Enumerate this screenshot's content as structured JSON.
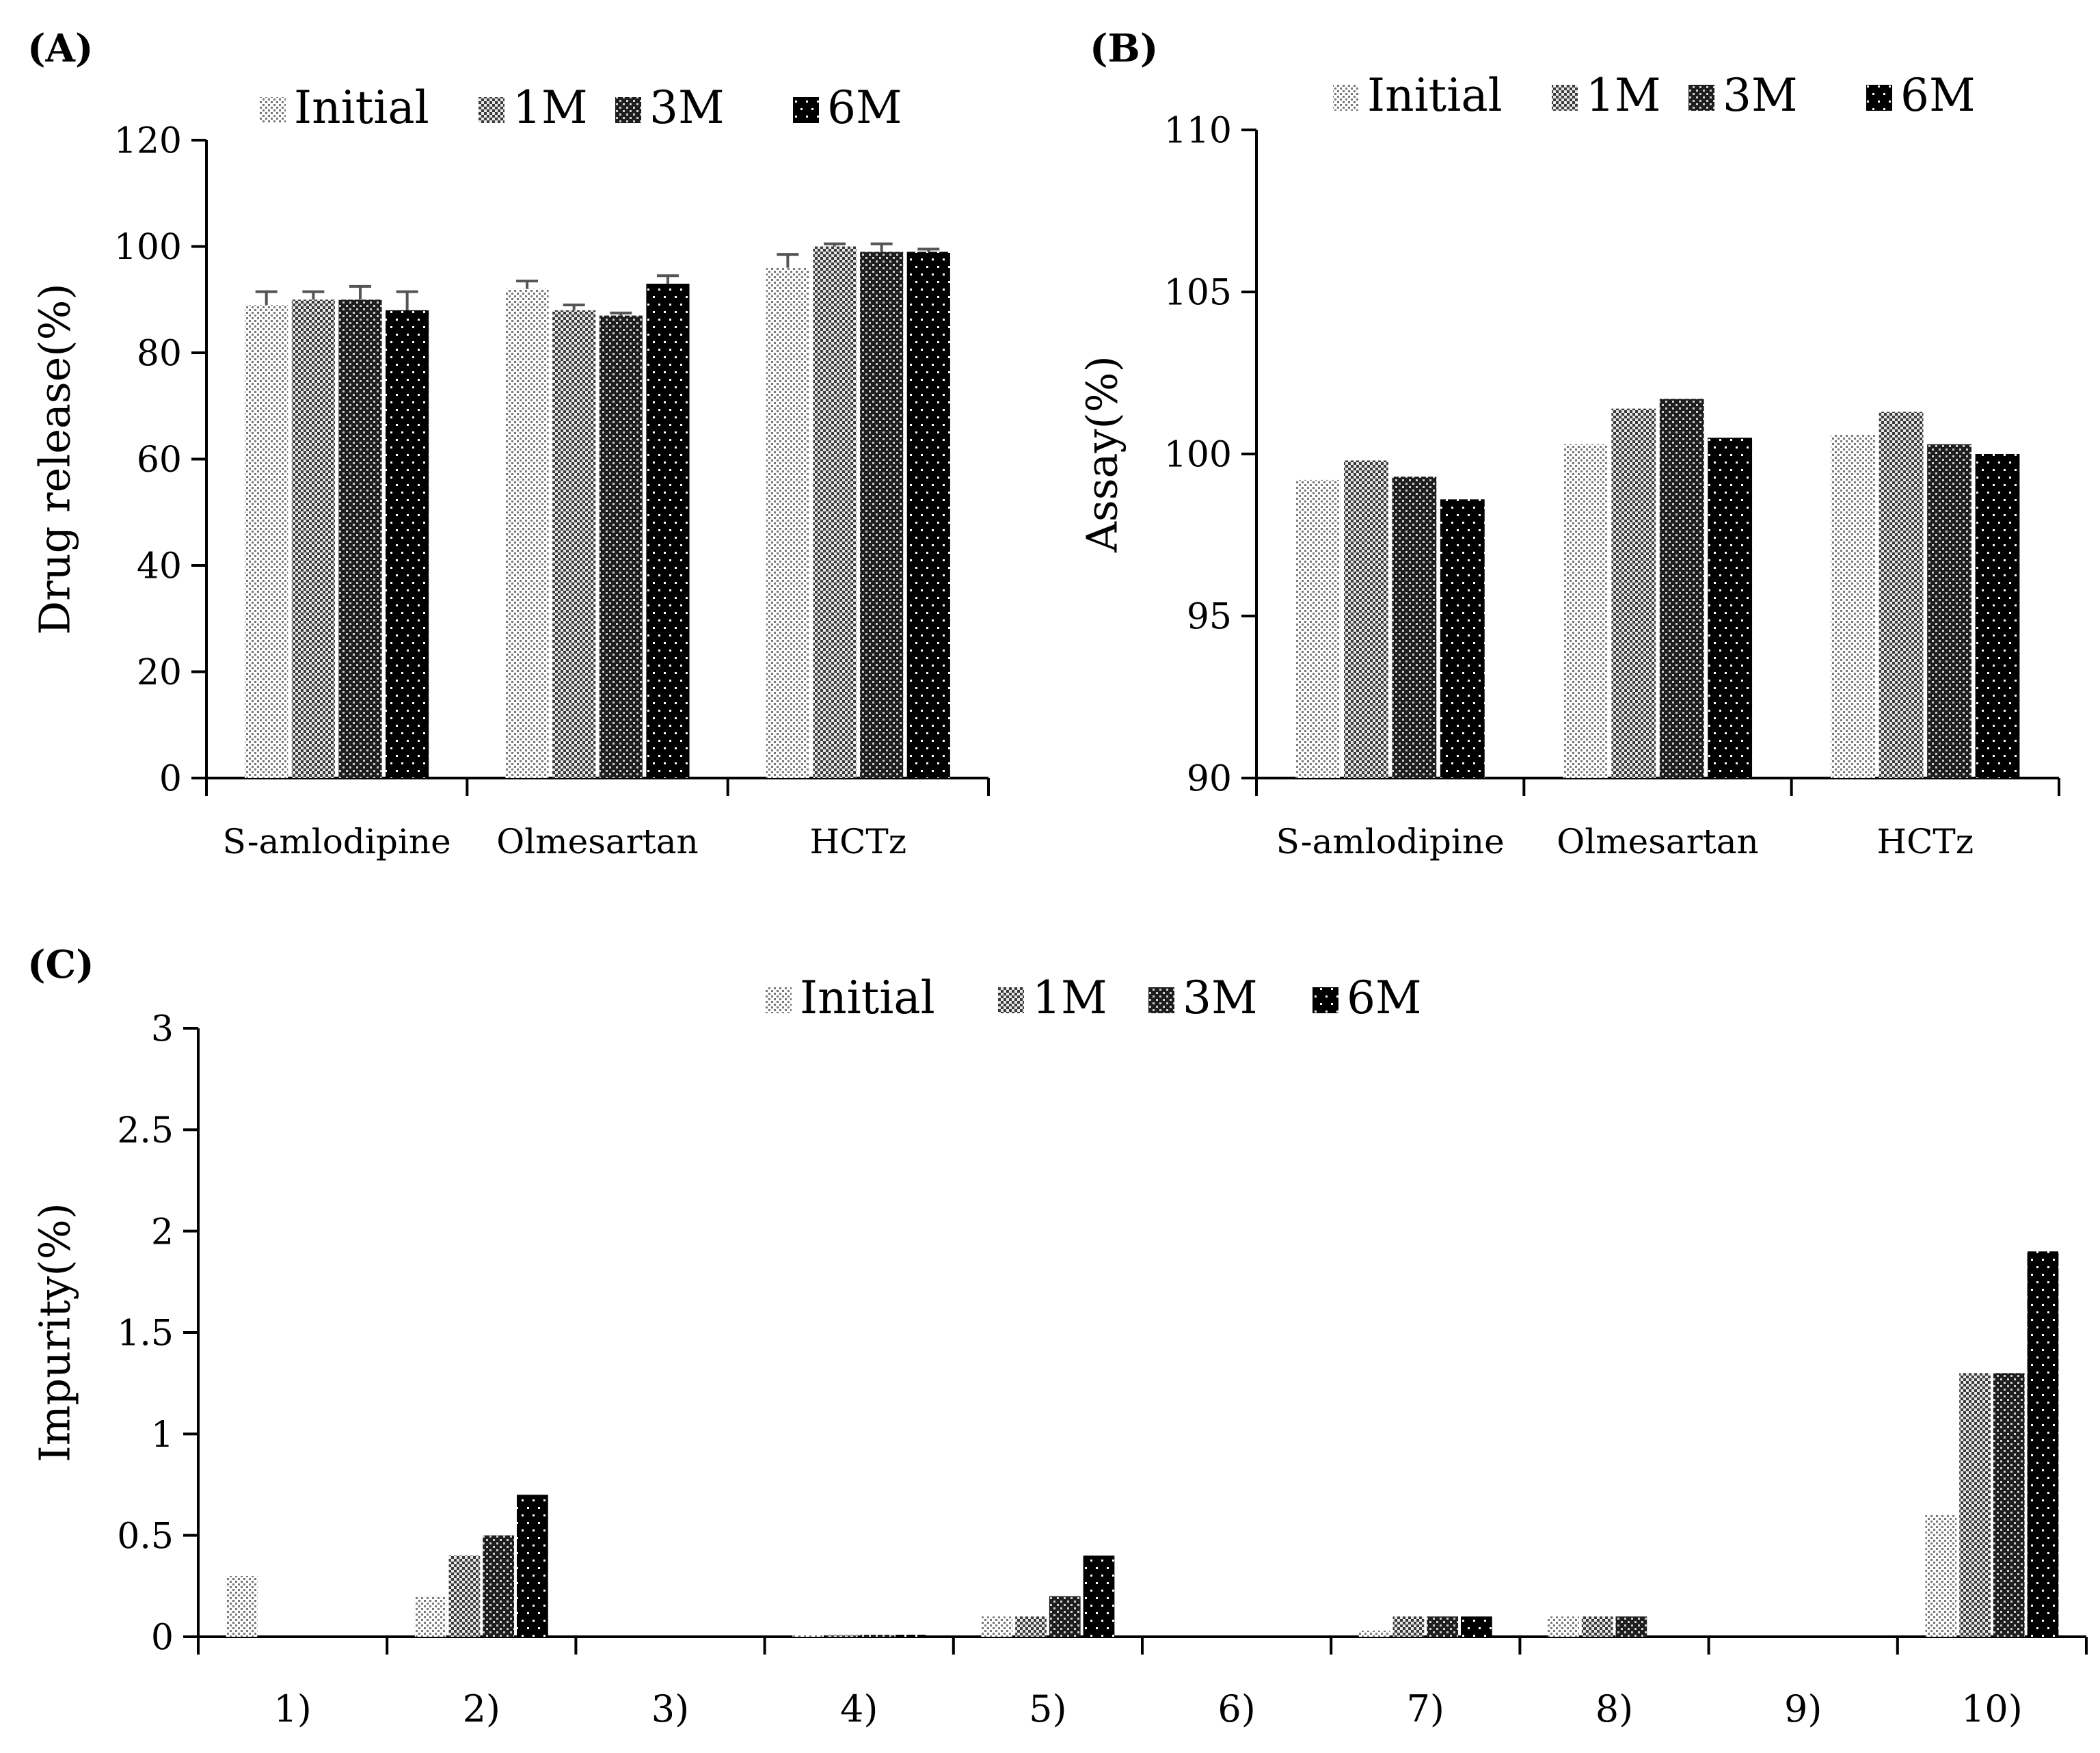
{
  "chart_data": [
    {
      "panel": "(A)",
      "type": "bar",
      "title": "",
      "xlabel": "",
      "ylabel": "Drug release(%)",
      "ylim": [
        0,
        120
      ],
      "yticks": [
        0,
        20,
        40,
        60,
        80,
        100,
        120
      ],
      "categories": [
        "S-amlodipine",
        "Olmesartan",
        "HCTz"
      ],
      "legend_position": "top",
      "grid": false,
      "series": [
        {
          "name": "Initial",
          "pattern": "pat-initial",
          "values": [
            89,
            92,
            96
          ],
          "errors": [
            2.5,
            1.5,
            2.5
          ]
        },
        {
          "name": "1M",
          "pattern": "pat-1m",
          "values": [
            90,
            88,
            100
          ],
          "errors": [
            1.5,
            1,
            0.5
          ]
        },
        {
          "name": "3M",
          "pattern": "pat-3m",
          "values": [
            90,
            87,
            99
          ],
          "errors": [
            2.5,
            0.5,
            1.5
          ]
        },
        {
          "name": "6M",
          "pattern": "pat-6m",
          "values": [
            88,
            93,
            99
          ],
          "errors": [
            3.5,
            1.5,
            0.5
          ]
        }
      ]
    },
    {
      "panel": "(B)",
      "type": "bar",
      "title": "",
      "xlabel": "",
      "ylabel": "Assay(%)",
      "ylim": [
        90,
        110
      ],
      "yticks": [
        90,
        95,
        100,
        105,
        110
      ],
      "categories": [
        "S-amlodipine",
        "Olmesartan",
        "HCTz"
      ],
      "legend_position": "top",
      "grid": false,
      "series": [
        {
          "name": "Initial",
          "pattern": "pat-initial",
          "values": [
            99.2,
            100.3,
            100.6
          ]
        },
        {
          "name": "1M",
          "pattern": "pat-1m",
          "values": [
            99.8,
            101.4,
            101.3
          ]
        },
        {
          "name": "3M",
          "pattern": "pat-3m",
          "values": [
            99.3,
            101.7,
            100.3
          ]
        },
        {
          "name": "6M",
          "pattern": "pat-6m",
          "values": [
            98.6,
            100.5,
            100.0
          ]
        }
      ]
    },
    {
      "panel": "(C)",
      "type": "bar",
      "title": "",
      "xlabel": "",
      "ylabel": "Impurity(%)",
      "ylim": [
        0,
        3
      ],
      "yticks": [
        0,
        0.5,
        1,
        1.5,
        2,
        2.5,
        3
      ],
      "categories": [
        "1)",
        "2)",
        "3)",
        "4)",
        "5)",
        "6)",
        "7)",
        "8)",
        "9)",
        "10)"
      ],
      "legend_position": "top",
      "grid": false,
      "series": [
        {
          "name": "Initial",
          "pattern": "pat-initial",
          "values": [
            0.3,
            0.2,
            0,
            0.01,
            0.1,
            0,
            0.03,
            0.1,
            0,
            0.6
          ]
        },
        {
          "name": "1M",
          "pattern": "pat-1m",
          "values": [
            0,
            0.4,
            0,
            0.01,
            0.1,
            0,
            0.1,
            0.1,
            0,
            1.3
          ]
        },
        {
          "name": "3M",
          "pattern": "pat-3m",
          "values": [
            0,
            0.5,
            0,
            0.01,
            0.2,
            0,
            0.1,
            0.1,
            0,
            1.3
          ]
        },
        {
          "name": "6M",
          "pattern": "pat-6m",
          "values": [
            0,
            0.7,
            0,
            0.01,
            0.4,
            0,
            0.1,
            0,
            0,
            1.9
          ]
        }
      ]
    }
  ]
}
